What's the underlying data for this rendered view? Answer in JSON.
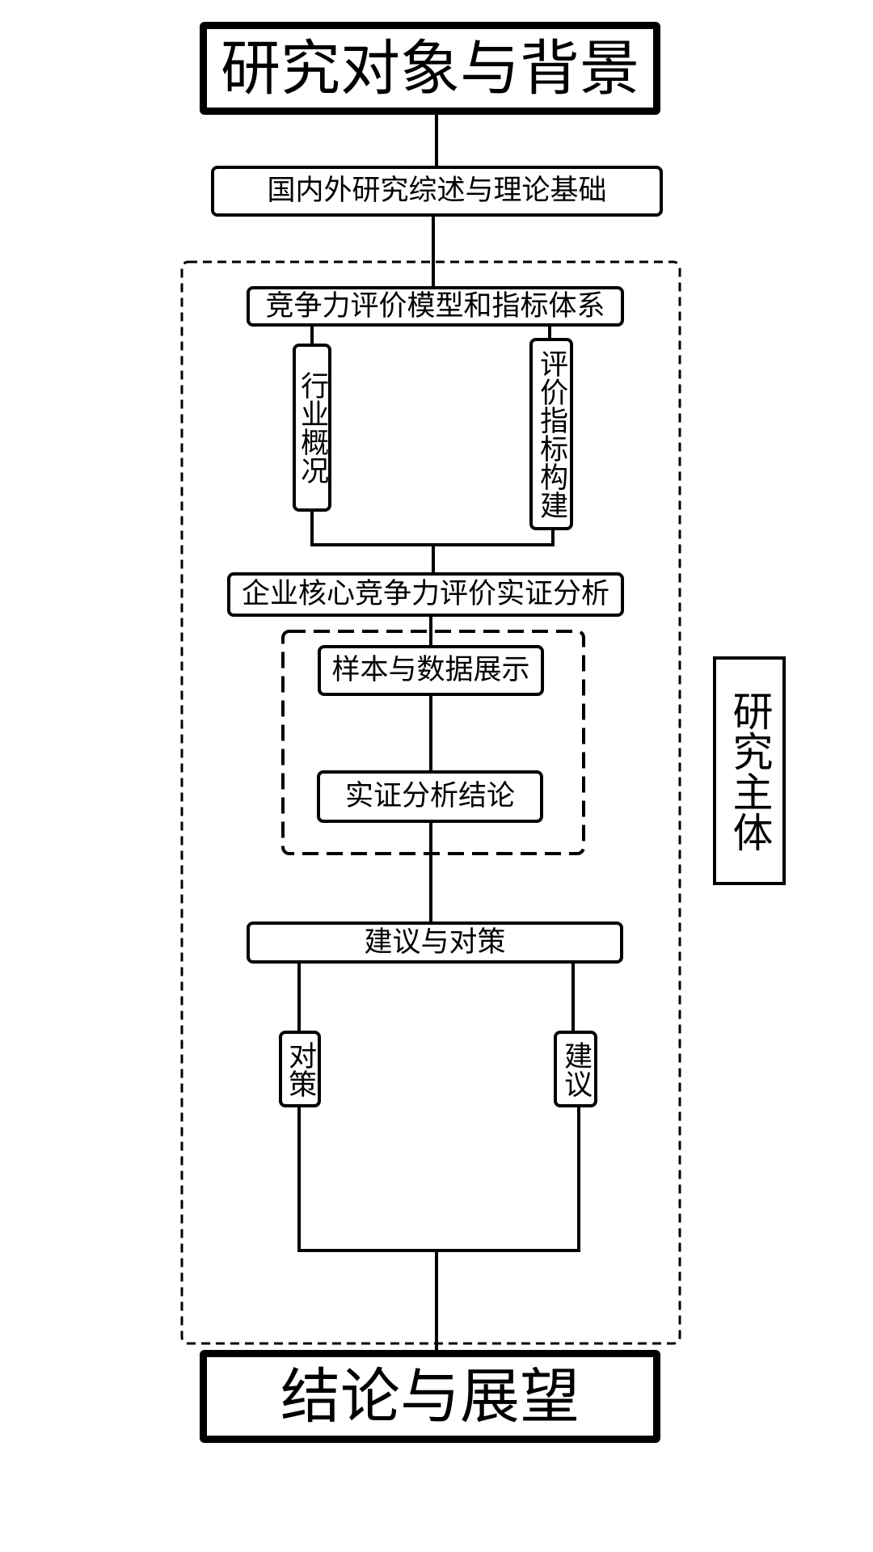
{
  "nodes": {
    "top_title": "研究对象与背景",
    "literature_review": "国内外研究综述与理论基础",
    "eval_model": "竞争力评价模型和指标体系",
    "industry_overview": "行业概况",
    "indicator_build": "评价指标构建",
    "empirical_analysis": "企业核心竞争力评价实证分析",
    "sample_data": "样本与数据展示",
    "empirical_conclusion": "实证分析结论",
    "suggestions_measures": "建议与对策",
    "measures": "对策",
    "suggestions": "建议",
    "bottom_title": "结论与展望",
    "research_main": "研究主体"
  }
}
